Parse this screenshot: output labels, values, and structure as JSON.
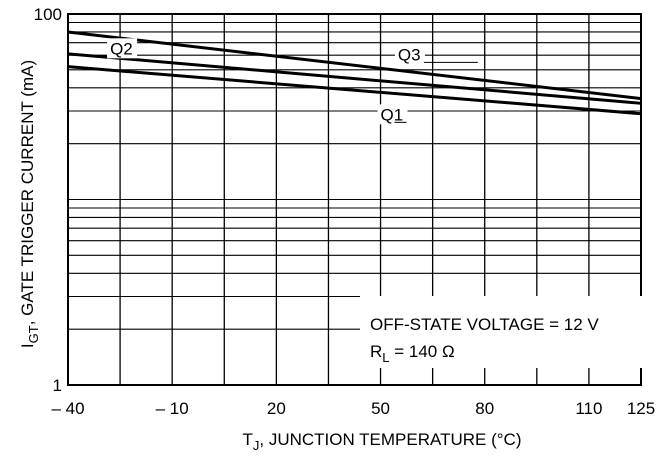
{
  "chart_data": {
    "type": "line",
    "x_axis": {
      "label_main": "T",
      "label_sub": "J",
      "label_rest": ", JUNCTION TEMPERATURE (°C)",
      "ticks": [
        "– 40",
        "– 10",
        "20",
        "50",
        "80",
        "110",
        "125"
      ],
      "tick_values": [
        -40,
        -10,
        20,
        50,
        80,
        110,
        125
      ],
      "range": [
        -40,
        125
      ]
    },
    "y_axis": {
      "label_main": "I",
      "label_sub": "GT",
      "label_rest": ", GATE TRIGGER CURRENT (mA)",
      "scale": "log",
      "range": [
        1,
        100
      ],
      "ticks": [
        "1",
        "100"
      ],
      "tick_values": [
        1,
        100
      ]
    },
    "grid": true,
    "series": [
      {
        "name": "Q3",
        "x": [
          -40,
          125
        ],
        "y": [
          80,
          35
        ]
      },
      {
        "name": "Q2",
        "x": [
          -40,
          125
        ],
        "y": [
          61,
          33
        ]
      },
      {
        "name": "Q1",
        "x": [
          -40,
          125
        ],
        "y": [
          52,
          29
        ]
      }
    ],
    "annotations": {
      "line1": "OFF-STATE VOLTAGE = 12 V",
      "line2_main": "R",
      "line2_sub": "L",
      "line2_rest": " = 140 Ω"
    }
  }
}
